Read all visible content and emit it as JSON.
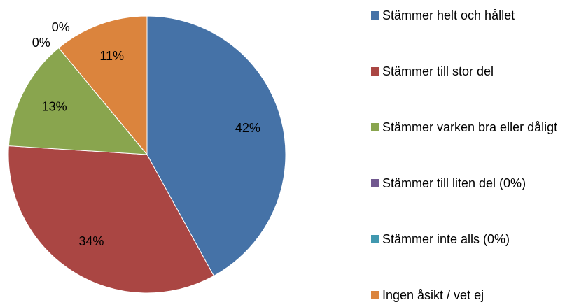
{
  "chart_data": {
    "type": "pie",
    "categories": [
      "Stämmer helt och hållet",
      "Stämmer till stor del",
      "Stämmer varken bra eller dåligt",
      "Stämmer till liten del (0%)",
      "Stämmer inte alls (0%)",
      "Ingen åsikt / vet ej"
    ],
    "values": [
      42,
      34,
      13,
      0,
      0,
      11
    ],
    "value_labels": [
      "42%",
      "34%",
      "13%",
      "0%",
      "0%",
      "11%"
    ],
    "colors": [
      "#4572a7",
      "#aa4643",
      "#89a54e",
      "#71588f",
      "#4198af",
      "#db843d"
    ],
    "legend": "right"
  }
}
